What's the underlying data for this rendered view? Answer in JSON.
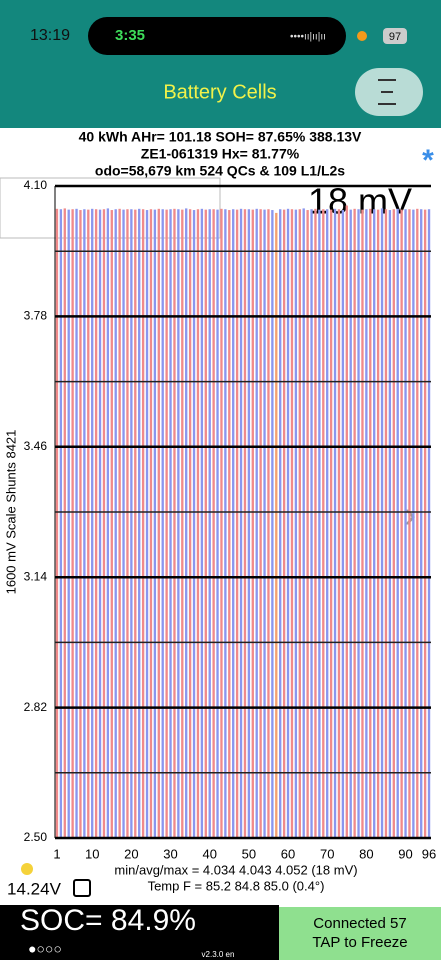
{
  "status_bar": {
    "time": "13:19",
    "call_time": "3:35",
    "battery": "97"
  },
  "header": {
    "title": "Battery Cells"
  },
  "summary": {
    "line1": "40 kWh  AHr= 101.18  SOH= 87.65%  388.13V",
    "line2": "ZE1-061319   Hx= 81.77%",
    "line3": "odo=58,679 km 524 QCs & 109 L1/L2s",
    "marker": "*"
  },
  "chart_data": {
    "type": "bar",
    "y_label": "1600 mV Scale   Shunts 8421",
    "annotation": "18 mV",
    "categories": [
      1,
      null,
      null,
      null,
      null,
      null,
      null,
      null,
      null,
      10,
      null,
      null,
      null,
      null,
      null,
      null,
      null,
      null,
      null,
      20,
      null,
      null,
      null,
      null,
      null,
      null,
      null,
      null,
      null,
      30,
      null,
      null,
      null,
      null,
      null,
      null,
      null,
      null,
      null,
      40,
      null,
      null,
      null,
      null,
      null,
      null,
      null,
      null,
      null,
      50,
      null,
      null,
      null,
      null,
      null,
      null,
      null,
      null,
      null,
      60,
      null,
      null,
      null,
      null,
      null,
      null,
      null,
      null,
      null,
      70,
      null,
      null,
      null,
      null,
      null,
      null,
      null,
      null,
      null,
      80,
      null,
      null,
      null,
      null,
      null,
      null,
      null,
      null,
      null,
      90,
      null,
      null,
      null,
      null,
      null,
      96
    ],
    "values": [
      4.044,
      4.043,
      4.045,
      4.042,
      4.043,
      4.044,
      4.041,
      4.043,
      4.042,
      4.044,
      4.043,
      4.042,
      4.043,
      4.045,
      4.041,
      4.043,
      4.044,
      4.042,
      4.043,
      4.043,
      4.042,
      4.044,
      4.043,
      4.041,
      4.043,
      4.042,
      4.044,
      4.043,
      4.042,
      4.043,
      4.044,
      4.043,
      4.042,
      4.045,
      4.043,
      4.041,
      4.043,
      4.044,
      4.042,
      4.043,
      4.043,
      4.042,
      4.044,
      4.043,
      4.041,
      4.043,
      4.042,
      4.044,
      4.043,
      4.043,
      4.042,
      4.044,
      4.043,
      4.042,
      4.043,
      4.041,
      4.034,
      4.043,
      4.042,
      4.044,
      4.043,
      4.042,
      4.043,
      4.045,
      4.041,
      4.043,
      4.044,
      4.042,
      4.043,
      4.043,
      4.042,
      4.044,
      4.043,
      4.041,
      4.052,
      4.042,
      4.044,
      4.043,
      4.042,
      4.043,
      4.044,
      4.043,
      4.042,
      4.045,
      4.043,
      4.041,
      4.043,
      4.044,
      4.042,
      4.043,
      4.043,
      4.042,
      4.044,
      4.043,
      4.042,
      4.043
    ],
    "bar_colors": [
      "#f08a8a",
      "#8a96ee"
    ],
    "highlight": {
      "index": 56,
      "color": "#f4a070"
    },
    "ylim": [
      2.5,
      4.1
    ],
    "yticks": [
      {
        "value": 4.1,
        "label": "4.10"
      },
      3.78,
      3.46,
      3.14,
      2.82,
      {
        "value": 2.5,
        "label": "2.50"
      }
    ],
    "minor_yticks": [
      3.94,
      3.62,
      3.3,
      2.98,
      2.66
    ],
    "grid": true
  },
  "footer": {
    "stats": "min/avg/max = 4.034 4.043 4.052  (18 mV)",
    "temp": "Temp F = 85.2  84.8  85.0  (0.4°)",
    "voltage": "14.24V",
    "soc": "SOC= 84.9%",
    "version": "v2.3.0 en",
    "status": "Connected 57",
    "action": "TAP to Freeze"
  }
}
